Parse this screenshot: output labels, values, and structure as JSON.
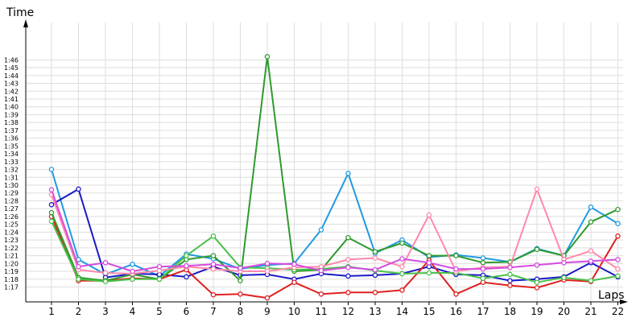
{
  "chart_data": {
    "type": "line",
    "xlabel": "Laps",
    "ylabel": "Time",
    "x": [
      1,
      2,
      3,
      4,
      5,
      6,
      7,
      8,
      9,
      10,
      11,
      12,
      13,
      14,
      15,
      16,
      17,
      18,
      19,
      20,
      21,
      22
    ],
    "y_ticks": [
      "1:17",
      "1:18",
      "1:19",
      "1:20",
      "1:21",
      "1:22",
      "1:23",
      "1:24",
      "1:25",
      "1:26",
      "1:27",
      "1:28",
      "1:29",
      "1:30",
      "1:31",
      "1:32",
      "1:33",
      "1:34",
      "1:35",
      "1:36",
      "1:37",
      "1:38",
      "1:39",
      "1:40",
      "1:41",
      "1:42",
      "1:43",
      "1:44",
      "1:45",
      "1:46"
    ],
    "ylim_seconds": [
      76,
      107
    ],
    "grid": true,
    "series": [
      {
        "color": "#1f9ae0",
        "values": [
          92.0,
          80.5,
          78.6,
          79.9,
          78.4,
          81.2,
          80.6,
          79.3,
          79.8,
          80.0,
          84.3,
          91.5,
          81.3,
          83.0,
          80.8,
          81.1,
          80.7,
          80.2,
          81.9,
          81.0,
          87.2,
          85.1
        ]
      },
      {
        "color": "#1a1ac8",
        "values": [
          87.5,
          89.5,
          78.2,
          78.7,
          78.6,
          78.3,
          79.6,
          78.5,
          78.6,
          78.0,
          78.7,
          78.4,
          78.5,
          78.7,
          79.6,
          78.6,
          78.5,
          77.8,
          78.0,
          78.3,
          80.1,
          78.3
        ]
      },
      {
        "color": "#e02020",
        "values": [
          86.0,
          77.8,
          77.8,
          78.1,
          78.0,
          79.2,
          76.0,
          76.1,
          75.6,
          77.6,
          76.1,
          76.3,
          76.3,
          76.6,
          80.4,
          76.1,
          77.6,
          77.2,
          76.9,
          77.9,
          77.7,
          83.5
        ]
      },
      {
        "color": "#2e9a2e",
        "values": [
          86.5,
          78.2,
          77.8,
          78.6,
          78.0,
          80.5,
          81.0,
          77.8,
          106.4,
          79.0,
          79.2,
          83.3,
          81.5,
          82.6,
          81.0,
          81.0,
          80.1,
          80.2,
          81.8,
          81.0,
          85.3,
          86.9
        ]
      },
      {
        "color": "#49c149",
        "values": [
          85.4,
          78.0,
          77.7,
          78.0,
          78.0,
          81.0,
          83.5,
          79.5,
          79.4,
          79.2,
          79.3,
          79.6,
          79.1,
          78.7,
          78.8,
          78.8,
          78.1,
          78.6,
          77.6,
          78.2,
          77.8,
          78.4
        ]
      },
      {
        "color": "#ff88aa",
        "values": [
          88.8,
          79.2,
          78.8,
          78.7,
          79.1,
          79.6,
          79.3,
          79.0,
          79.0,
          79.5,
          79.6,
          80.5,
          80.7,
          79.6,
          86.2,
          79.0,
          79.5,
          79.6,
          89.5,
          80.5,
          81.6,
          79.3
        ]
      },
      {
        "color": "#d44be0",
        "values": [
          89.4,
          79.6,
          80.1,
          79.0,
          79.6,
          79.7,
          79.9,
          79.4,
          80.0,
          79.9,
          79.1,
          79.5,
          79.2,
          80.6,
          80.1,
          79.3,
          79.3,
          79.5,
          79.8,
          80.1,
          80.3,
          80.5
        ]
      }
    ]
  }
}
